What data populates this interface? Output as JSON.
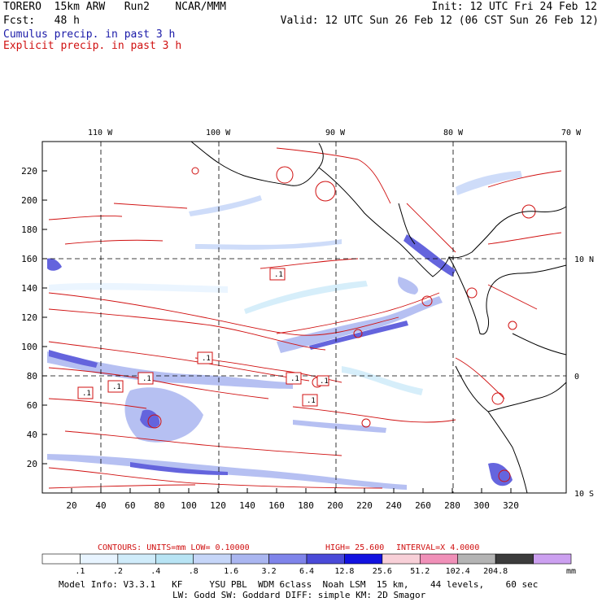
{
  "header": {
    "title_line1": "TORERO  15km ARW   Run2    NCAR/MMM",
    "title_line2": "Fcst:   48 h",
    "init": "Init: 12 UTC Fri 24 Feb 12",
    "valid": "Valid: 12 UTC Sun 26 Feb 12 (06 CST Sun 26 Feb 12)",
    "legend_cumulus": "Cumulus precip. in past 3 h",
    "legend_explicit": "Explicit precip. in past 3 h",
    "legend_cumulus_color": "#1a1aa8",
    "legend_explicit_color": "#d01010"
  },
  "map": {
    "x_ticks": [
      "20",
      "40",
      "60",
      "80",
      "100",
      "120",
      "140",
      "160",
      "180",
      "200",
      "220",
      "240",
      "260",
      "280",
      "300",
      "320"
    ],
    "y_ticks": [
      "20",
      "40",
      "60",
      "80",
      "100",
      "120",
      "140",
      "160",
      "180",
      "200",
      "220"
    ],
    "lon_labels": [
      "110 W",
      "100 W",
      "90 W",
      "80 W",
      "70 W"
    ],
    "lat_labels": [
      "10 N",
      "0",
      "10 S"
    ],
    "contour_boxes": [
      ".1",
      ".1",
      ".1",
      ".1",
      ".1",
      ".1",
      ".1",
      ".1"
    ]
  },
  "colorbar": {
    "title_contours": "CONTOURS:  UNITS=mm  LOW= 0.10000",
    "title_high": "HIGH=  25.600",
    "title_interval": "INTERVAL=X  4.0000",
    "labels": [
      ".1",
      ".2",
      ".4",
      ".8",
      "1.6",
      "3.2",
      "6.4",
      "12.8",
      "25.6",
      "51.2",
      "102.4",
      "204.8"
    ],
    "unit": "mm",
    "colors": [
      "#ffffff",
      "#e8f4ff",
      "#d0ecfa",
      "#b8e4f4",
      "#c6d6f8",
      "#aab6f0",
      "#7f84ea",
      "#4a4ad8",
      "#1212e0",
      "#f8d0d8",
      "#f090b8",
      "#b4b4b4",
      "#3c3c3c",
      "#cca0f0"
    ]
  },
  "footer": {
    "line1": "Model Info: V3.3.1   KF     YSU PBL  WDM 6class  Noah LSM  15 km,    44 levels,    60 sec",
    "line2": "LW: Godd SW: Goddard DIFF: simple KM: 2D Smagor"
  }
}
